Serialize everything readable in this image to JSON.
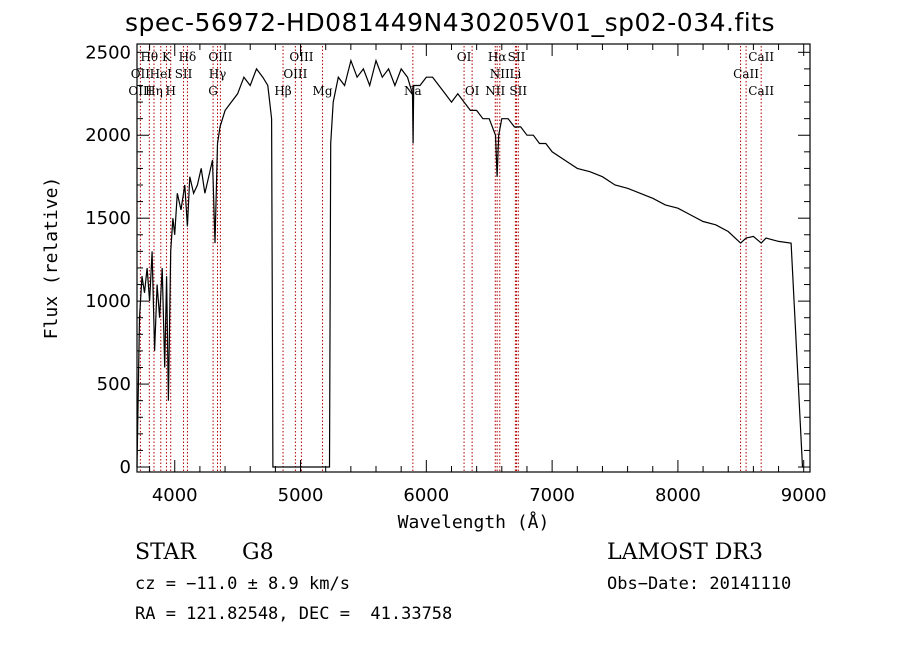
{
  "chart_data": {
    "type": "line",
    "title": "spec-56972-HD081449N430205V01_sp02-034.fits",
    "xlabel": "Wavelength (Å)",
    "ylabel": "Flux (relative)",
    "xlim": [
      3700,
      9050
    ],
    "ylim": [
      -30,
      2550
    ],
    "xticks": [
      4000,
      5000,
      6000,
      7000,
      8000,
      9000
    ],
    "yticks": [
      0,
      500,
      1000,
      1500,
      2000,
      2500
    ],
    "series": [
      {
        "name": "flux",
        "x": [
          3700,
          3720,
          3740,
          3760,
          3780,
          3800,
          3820,
          3840,
          3860,
          3880,
          3900,
          3920,
          3935,
          3950,
          3968,
          3985,
          4000,
          4020,
          4050,
          4080,
          4101,
          4120,
          4150,
          4180,
          4210,
          4240,
          4270,
          4300,
          4320,
          4340,
          4360,
          4400,
          4450,
          4500,
          4550,
          4600,
          4650,
          4700,
          4740,
          4770,
          4780,
          4790,
          4800,
          4850,
          4900,
          4950,
          5000,
          5050,
          5100,
          5150,
          5180,
          5200,
          5230,
          5240,
          5260,
          5300,
          5350,
          5400,
          5450,
          5500,
          5550,
          5600,
          5650,
          5700,
          5750,
          5800,
          5850,
          5890,
          5895,
          5900,
          5950,
          6000,
          6050,
          6100,
          6150,
          6200,
          6250,
          6300,
          6350,
          6400,
          6450,
          6500,
          6550,
          6563,
          6575,
          6600,
          6650,
          6700,
          6750,
          6800,
          6850,
          6900,
          6950,
          7000,
          7100,
          7200,
          7300,
          7400,
          7500,
          7600,
          7700,
          7800,
          7900,
          8000,
          8100,
          8200,
          8300,
          8400,
          8498,
          8542,
          8600,
          8662,
          8700,
          8800,
          8900,
          8990,
          9000
        ],
        "y": [
          0,
          900,
          1150,
          1050,
          1200,
          1000,
          1300,
          700,
          1100,
          900,
          1200,
          600,
          1150,
          400,
          1300,
          1500,
          1400,
          1650,
          1550,
          1700,
          1450,
          1750,
          1650,
          1700,
          1800,
          1650,
          1750,
          1850,
          1350,
          1950,
          2050,
          2150,
          2200,
          2250,
          2350,
          2300,
          2400,
          2350,
          2300,
          2100,
          0,
          0,
          0,
          0,
          0,
          0,
          0,
          0,
          0,
          0,
          0,
          0,
          0,
          1950,
          2200,
          2350,
          2300,
          2450,
          2350,
          2400,
          2300,
          2450,
          2350,
          2400,
          2300,
          2400,
          2350,
          2250,
          1950,
          2300,
          2300,
          2350,
          2350,
          2300,
          2250,
          2200,
          2250,
          2200,
          2150,
          2150,
          2100,
          2100,
          2000,
          1750,
          2000,
          2100,
          2100,
          2050,
          2050,
          2000,
          2000,
          1950,
          1950,
          1900,
          1850,
          1800,
          1780,
          1750,
          1700,
          1680,
          1650,
          1620,
          1580,
          1560,
          1520,
          1480,
          1460,
          1420,
          1350,
          1380,
          1390,
          1350,
          1380,
          1360,
          1350,
          0,
          0
        ]
      }
    ],
    "lines_top": [
      {
        "label": "Hθ",
        "x": 3798
      },
      {
        "label": "K",
        "x": 3934
      },
      {
        "label": "Hδ",
        "x": 4101
      },
      {
        "label": "OIII",
        "x": 4363
      },
      {
        "label": "OIII",
        "x": 5007
      },
      {
        "label": "OI",
        "x": 6300
      },
      {
        "label": "Hα",
        "x": 6563
      },
      {
        "label": "SII",
        "x": 6717
      },
      {
        "label": "CaII",
        "x": 8662
      }
    ],
    "lines_mid": [
      {
        "label": "OII",
        "x": 3727
      },
      {
        "label": "HeI",
        "x": 3889
      },
      {
        "label": "SII",
        "x": 4070
      },
      {
        "label": "Hγ",
        "x": 4340
      },
      {
        "label": "OIII",
        "x": 4959
      },
      {
        "label": "NII",
        "x": 6584
      },
      {
        "label": "Li",
        "x": 6708
      },
      {
        "label": "CaII",
        "x": 8542
      }
    ],
    "lines_low": [
      {
        "label": "OIII",
        "x": 3727
      },
      {
        "label": "Hη",
        "x": 3835
      },
      {
        "label": "H",
        "x": 3968
      },
      {
        "label": "G",
        "x": 4305
      },
      {
        "label": "Hβ",
        "x": 4861
      },
      {
        "label": "Mg",
        "x": 5175
      },
      {
        "label": "Na",
        "x": 5893
      },
      {
        "label": "OI",
        "x": 6364
      },
      {
        "label": "NII",
        "x": 6548
      },
      {
        "label": "SII",
        "x": 6731
      },
      {
        "label": "CaII",
        "x": 8662
      }
    ],
    "marker_x": [
      3727,
      3798,
      3835,
      3889,
      3934,
      3968,
      4070,
      4101,
      4305,
      4340,
      4363,
      4861,
      4959,
      5007,
      5175,
      5893,
      6300,
      6364,
      6548,
      6563,
      6584,
      6708,
      6717,
      6731,
      8498,
      8542,
      8662
    ]
  },
  "info": {
    "object_class": "STAR",
    "subclass": "G8",
    "survey": "LAMOST DR3",
    "cz": "cz = −11.0 ± 8.9 km/s",
    "obs_date": "Obs−Date: 20141110",
    "radec": "RA = 121.82548, DEC =  41.33758"
  }
}
